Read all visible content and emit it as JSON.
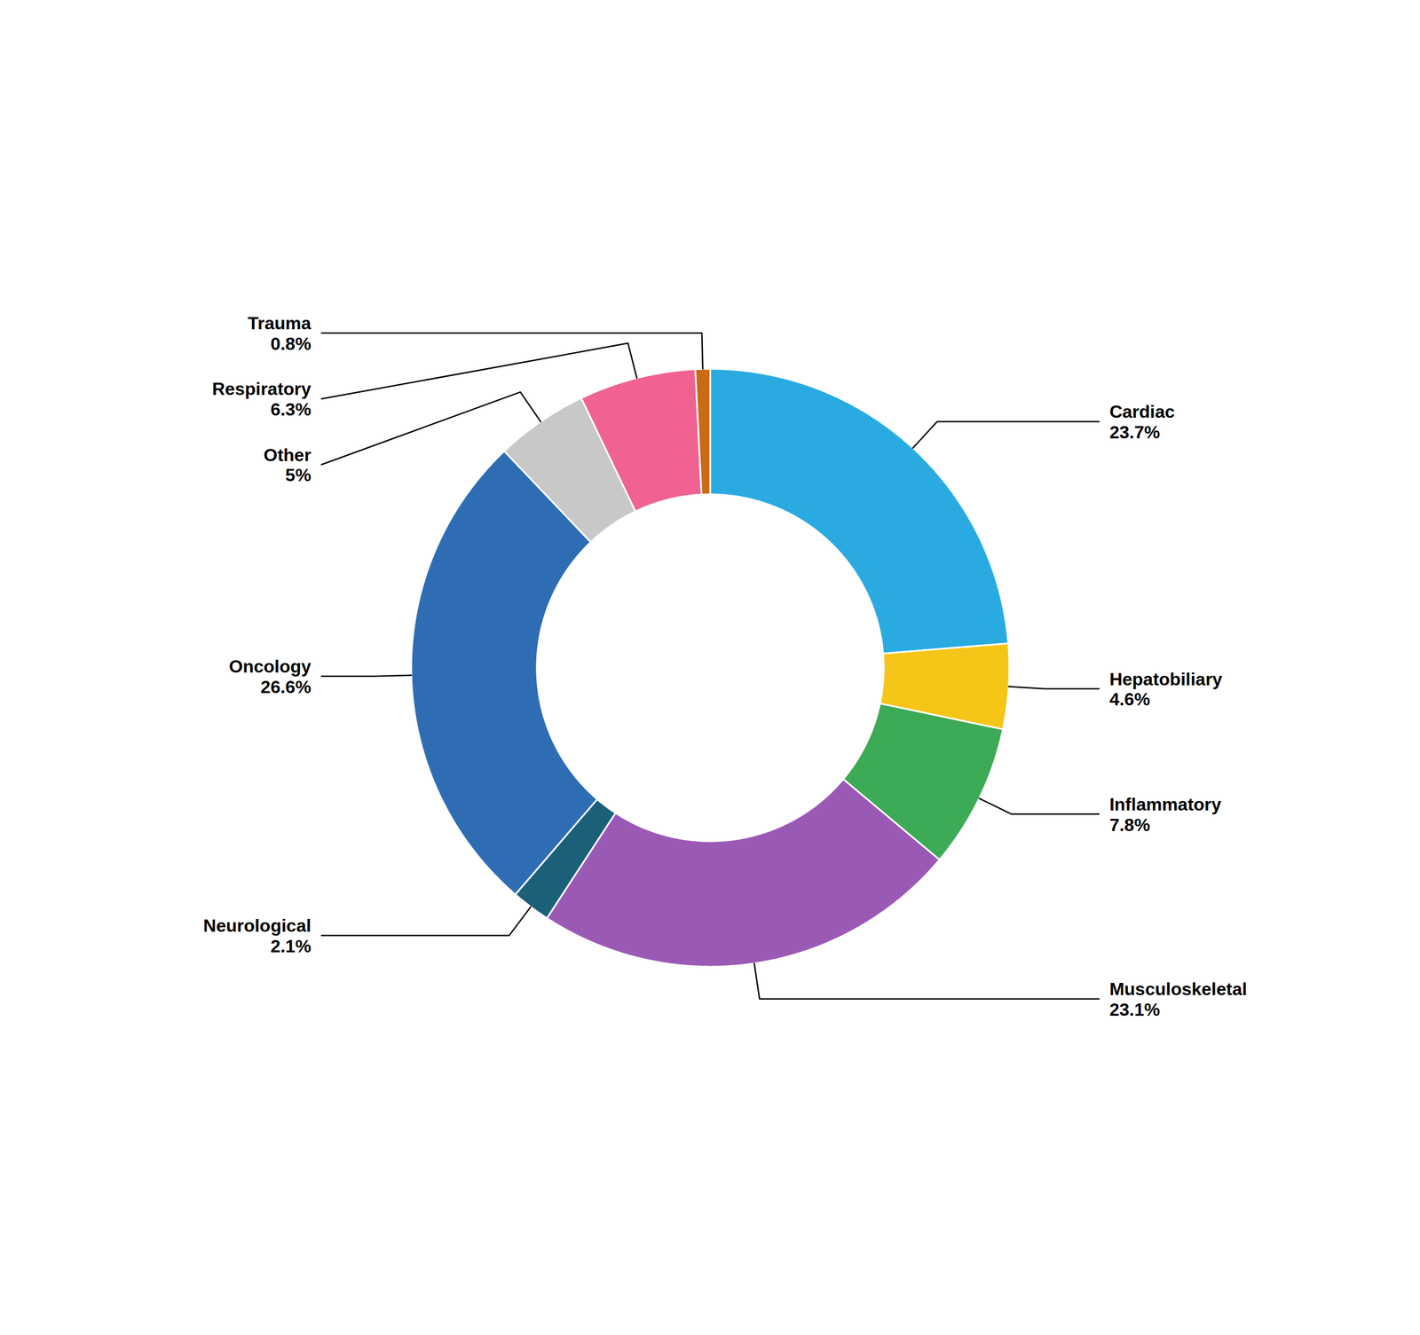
{
  "chart_data": {
    "type": "donut",
    "categories": [
      "Cardiac",
      "Hepatobiliary",
      "Inflammatory",
      "Musculoskeletal",
      "Neurological",
      "Oncology",
      "Other",
      "Respiratory",
      "Trauma"
    ],
    "values": [
      23.7,
      4.6,
      7.8,
      23.1,
      2.1,
      26.6,
      5.0,
      6.3,
      0.8
    ],
    "colors": [
      "#29ABE2",
      "#F5C518",
      "#3DAA55",
      "#9B59B6",
      "#1C5F78",
      "#2E6DB4",
      "#C8C8C8",
      "#F06292",
      "#C96A15"
    ],
    "data_labels": true,
    "value_labels": [
      "23.7%",
      "4.6%",
      "7.8%",
      "23.1%",
      "2.1%",
      "26.6%",
      "5%",
      "6.3%",
      "0.8%"
    ]
  }
}
